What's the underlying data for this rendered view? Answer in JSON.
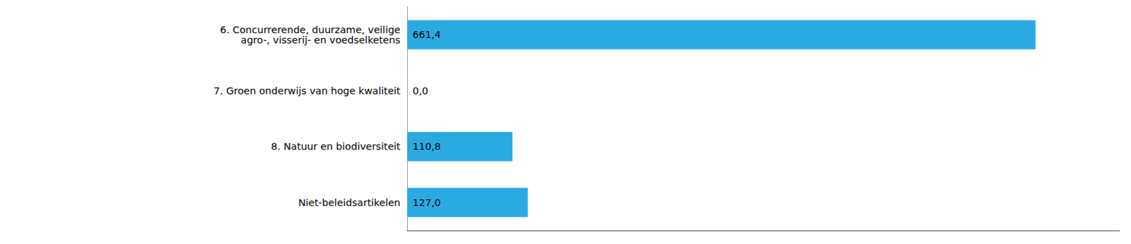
{
  "chart_data": {
    "type": "bar",
    "orientation": "horizontal",
    "categories": [
      "6. Concurrerende, duurzame, veilige\n     agro-, visserij- en voedselketens",
      "7. Groen onderwijs van hoge kwaliteit",
      "8. Natuur en biodiversiteit",
      "Niet-beleidsartikelen"
    ],
    "values": [
      661.4,
      0.0,
      110.8,
      127.0
    ],
    "value_labels": [
      "661,4",
      "0,0",
      "110,8",
      "127,0"
    ],
    "data_labels": true,
    "color": "#29ABE2",
    "xlim": [
      0,
      750
    ],
    "grid": false,
    "tick_labels": "y"
  }
}
